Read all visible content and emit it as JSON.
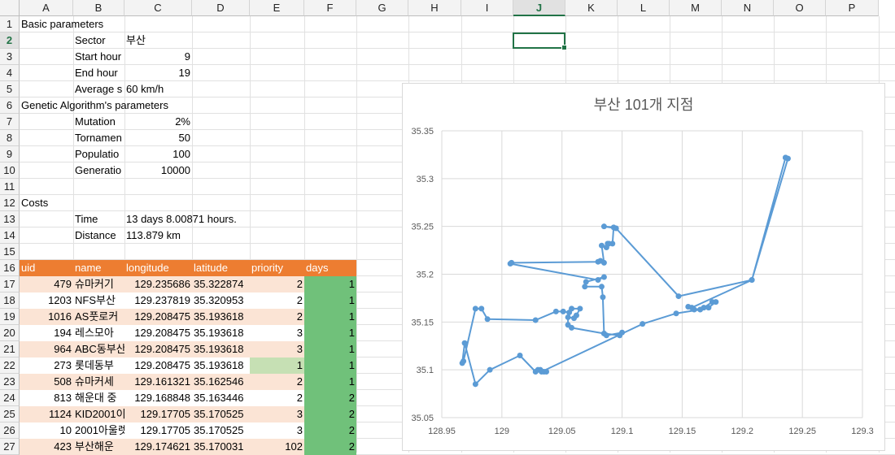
{
  "colors": {
    "header_orange": "#ed7d31",
    "priority_bg_odd": "#fbe4d5",
    "days_green": "#70c17a",
    "days_light_green": "#c6e0b4",
    "selection": "#217346",
    "series": "#5b9bd5"
  },
  "columns": [
    "A",
    "B",
    "C",
    "D",
    "E",
    "F",
    "G",
    "H",
    "I",
    "J",
    "K",
    "L",
    "M",
    "N",
    "O",
    "P"
  ],
  "active_column": "J",
  "active_row": "2",
  "rows": [
    "1",
    "2",
    "3",
    "4",
    "5",
    "6",
    "7",
    "8",
    "9",
    "10",
    "11",
    "12",
    "13",
    "14",
    "15",
    "16",
    "17",
    "18",
    "19",
    "20",
    "21",
    "22",
    "23",
    "24",
    "25",
    "26",
    "27"
  ],
  "sheet": {
    "basic_title": "Basic parameters",
    "sector_label": "Sector",
    "sector_value": "부산",
    "start_label": "Start hour",
    "start_value": "9",
    "end_label": "End hour",
    "end_value": "19",
    "speed_label": "Average s",
    "speed_value": "60 km/h",
    "ga_title": "Genetic Algorithm's parameters",
    "mutation_label": "Mutation",
    "mutation_value": "2%",
    "tournament_label": "Tornamen",
    "tournament_value": "50",
    "population_label": "Populatio",
    "population_value": "100",
    "generation_label": "Generatio",
    "generation_value": "10000",
    "costs_title": "Costs",
    "time_label": "Time",
    "time_value": "13 days 8.00871 hours.",
    "distance_label": "Distance",
    "distance_value": "113.879 km"
  },
  "table": {
    "headers": [
      "uid",
      "name",
      "longitude",
      "latitude",
      "priority",
      "days"
    ],
    "rows": [
      [
        "479",
        "슈마커기",
        "129.235686",
        "35.322874",
        "2",
        "1"
      ],
      [
        "1203",
        "NFS부산",
        "129.237819",
        "35.320953",
        "2",
        "1"
      ],
      [
        "1016",
        "AS풋로커",
        "129.208475",
        "35.193618",
        "2",
        "1"
      ],
      [
        "194",
        "레스모아",
        "129.208475",
        "35.193618",
        "3",
        "1"
      ],
      [
        "964",
        "ABC동부산",
        "129.208475",
        "35.193618",
        "3",
        "1"
      ],
      [
        "273",
        "롯데동부",
        "129.208475",
        "35.193618",
        "1",
        "1"
      ],
      [
        "508",
        "슈마커세",
        "129.161321",
        "35.162546",
        "2",
        "1"
      ],
      [
        "813",
        "해운대 중",
        "129.168848",
        "35.163446",
        "2",
        "2"
      ],
      [
        "1124",
        "KID2001이",
        "129.17705",
        "35.170525",
        "3",
        "2"
      ],
      [
        "10",
        "2001아울렛",
        "129.17705",
        "35.170525",
        "3",
        "2"
      ],
      [
        "423",
        "부산해운",
        "129.174621",
        "35.170031",
        "102",
        "2"
      ]
    ]
  },
  "chart_data": {
    "type": "line",
    "title": "부산 101개 지점",
    "xlim": [
      128.95,
      129.3
    ],
    "ylim": [
      35.05,
      35.35
    ],
    "xticks": [
      "128.95",
      "129",
      "129.05",
      "129.1",
      "129.15",
      "129.2",
      "129.25",
      "129.3"
    ],
    "yticks": [
      "35.35",
      "35.3",
      "35.25",
      "35.2",
      "35.15",
      "35.1",
      "35.05"
    ],
    "x": [
      129.236,
      129.238,
      129.208,
      129.147,
      129.095,
      129.085,
      129.093,
      129.092,
      129.088,
      129.089,
      129.087,
      129.083,
      129.085,
      129.082,
      129.08,
      129.008,
      129.007,
      129.08,
      129.085,
      129.07,
      129.069,
      129.083,
      129.084,
      129.085,
      129.087,
      129.1,
      129.098,
      129.085,
      129.058,
      129.055,
      129.055,
      129.06,
      129.062,
      129.065,
      129.058,
      129.056,
      129.051,
      129.045,
      129.028,
      128.988,
      128.983,
      128.978,
      128.968,
      128.967,
      128.969,
      128.978,
      128.99,
      129.015,
      129.028,
      129.03,
      129.032,
      129.035,
      129.037,
      129.033,
      129.117,
      129.145,
      129.165,
      129.168,
      129.175,
      129.178,
      129.172,
      129.16,
      129.155,
      129.158,
      129.208,
      129.236
    ],
    "y": [
      35.322,
      35.321,
      35.194,
      35.177,
      35.248,
      35.25,
      35.249,
      35.232,
      35.232,
      35.232,
      35.228,
      35.23,
      35.212,
      35.214,
      35.213,
      35.212,
      35.211,
      35.194,
      35.197,
      35.192,
      35.187,
      35.187,
      35.176,
      35.138,
      35.136,
      35.139,
      35.136,
      35.138,
      35.144,
      35.147,
      35.155,
      35.154,
      35.157,
      35.164,
      35.164,
      35.16,
      35.161,
      35.161,
      35.152,
      35.153,
      35.164,
      35.164,
      35.109,
      35.107,
      35.128,
      35.085,
      35.1,
      35.115,
      35.098,
      35.1,
      35.1,
      35.098,
      35.098,
      35.098,
      35.148,
      35.159,
      35.163,
      35.165,
      35.171,
      35.171,
      35.165,
      35.163,
      35.166,
      35.165,
      35.194,
      35.322
    ]
  }
}
